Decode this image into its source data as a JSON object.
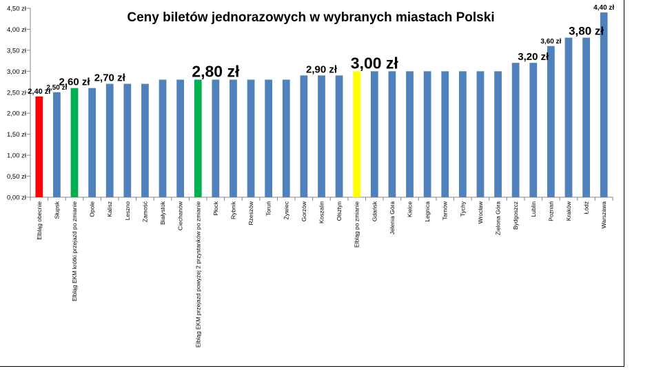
{
  "chart_data": {
    "type": "bar",
    "title": "Ceny biletów jednorazowych w wybranych miastach Polski",
    "xlabel": "",
    "ylabel": "",
    "ylim": [
      0,
      4.5
    ],
    "yticks": [
      "0,00 zł",
      "0,50 zł",
      "1,00 zł",
      "1,50 zł",
      "2,00 zł",
      "2,50 zł",
      "3,00 zł",
      "3,50 zł",
      "4,00 zł",
      "4,50 zł"
    ],
    "grid": false,
    "legend": "none",
    "categories": [
      "Elbląg obecnie",
      "Słupsk",
      "Elbląg EKM krótki przejazd po zmianie",
      "Opole",
      "Kalisz",
      "Leszno",
      "Zamość",
      "Białystok",
      "Ciechanów",
      "Elbląg EKM przejazd powyżej 2 przystanków po zmianie",
      "Płock",
      "Rybnik",
      "Rzeszów",
      "Toruń",
      "Żywiec",
      "Gorzów",
      "Koszalin",
      "Olsztyn",
      "Elbląg po zmianie",
      "Gdańsk",
      "Jelenia Góra",
      "Kielce",
      "Legnica",
      "Tarnów",
      "Tychy",
      "Wrocław",
      "Zielona Góra",
      "Bydgoszcz",
      "Lublin",
      "Poznań",
      "Kraków",
      "Łódź",
      "Warszawa"
    ],
    "values": [
      2.4,
      2.5,
      2.6,
      2.6,
      2.7,
      2.7,
      2.7,
      2.8,
      2.8,
      2.8,
      2.8,
      2.8,
      2.8,
      2.8,
      2.8,
      2.9,
      2.9,
      2.9,
      3.0,
      3.0,
      3.0,
      3.0,
      3.0,
      3.0,
      3.0,
      3.0,
      3.0,
      3.2,
      3.2,
      3.6,
      3.8,
      3.8,
      4.4
    ],
    "bar_colors": [
      "#ff0000",
      "#4f81bd",
      "#00b050",
      "#4f81bd",
      "#4f81bd",
      "#4f81bd",
      "#4f81bd",
      "#4f81bd",
      "#4f81bd",
      "#00b050",
      "#4f81bd",
      "#4f81bd",
      "#4f81bd",
      "#4f81bd",
      "#4f81bd",
      "#4f81bd",
      "#4f81bd",
      "#4f81bd",
      "#ffff00",
      "#4f81bd",
      "#4f81bd",
      "#4f81bd",
      "#4f81bd",
      "#4f81bd",
      "#4f81bd",
      "#4f81bd",
      "#4f81bd",
      "#4f81bd",
      "#4f81bd",
      "#4f81bd",
      "#4f81bd",
      "#4f81bd",
      "#4f81bd"
    ],
    "annotations": [
      {
        "index": 0,
        "text": "2,40 zł",
        "size": "small"
      },
      {
        "index": 1,
        "text": "2,50 zł",
        "size": "tiny"
      },
      {
        "index": 2,
        "text": "2,60 zł",
        "size": "medium"
      },
      {
        "index": 4,
        "text": "2,70 zł",
        "size": "medium"
      },
      {
        "index": 10,
        "text": "2,80 zł",
        "size": "xlarge"
      },
      {
        "index": 16,
        "text": "2,90 zł",
        "size": "medium"
      },
      {
        "index": 19,
        "text": "3,00 zł",
        "size": "xlarge"
      },
      {
        "index": 28,
        "text": "3,20 zł",
        "size": "medium"
      },
      {
        "index": 29,
        "text": "3,60 zł",
        "size": "tiny"
      },
      {
        "index": 31,
        "text": "3,80 zł",
        "size": "large"
      },
      {
        "index": 32,
        "text": "4,40 zł",
        "size": "tiny"
      }
    ]
  }
}
